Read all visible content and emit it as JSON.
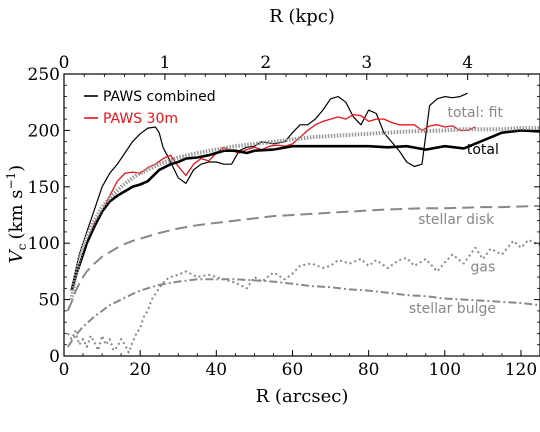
{
  "chart_data": {
    "type": "line",
    "xlabel": "R (arcsec)",
    "x2label": "R (kpc)",
    "ylabel_main": "V",
    "ylabel_sub": "c",
    "ylabel_units": "(km s",
    "ylabel_exp": "−1",
    "ylabel_close": ")",
    "xlim": [
      0,
      125
    ],
    "ylim": [
      0,
      250
    ],
    "x_ticks": [
      0,
      20,
      40,
      60,
      80,
      100,
      120
    ],
    "y_ticks": [
      0,
      50,
      100,
      150,
      200,
      250
    ],
    "x2_ticks": [
      0,
      1,
      2,
      3,
      4
    ],
    "x2_arcsec_per_kpc": 26.5,
    "legend": {
      "placement": "top-left",
      "entries": [
        {
          "label": "PAWS combined",
          "color": "#000000"
        },
        {
          "label": "PAWS 30m",
          "color": "#e8151b"
        }
      ]
    },
    "annotations": [
      {
        "text": "total: fit",
        "x": 108,
        "y": 212,
        "color": "#888888"
      },
      {
        "text": "total",
        "x": 110,
        "y": 179,
        "color": "#000000"
      },
      {
        "text": "stellar disk",
        "x": 103,
        "y": 117,
        "color": "#888888"
      },
      {
        "text": "gas",
        "x": 110,
        "y": 75,
        "color": "#888888"
      },
      {
        "text": "stellar bulge",
        "x": 102,
        "y": 38,
        "color": "#888888"
      }
    ],
    "series": [
      {
        "name": "PAWS combined",
        "color": "#000000",
        "width": 1.2,
        "dash": "",
        "x": [
          2,
          3,
          4,
          5,
          6,
          8,
          10,
          12,
          14,
          16,
          18,
          20,
          22,
          24,
          25,
          26,
          28,
          30,
          32,
          34,
          36,
          38,
          40,
          42,
          44,
          46,
          48,
          50,
          52,
          55,
          58,
          60,
          62,
          64,
          66,
          68,
          70,
          72,
          74,
          76,
          78,
          80,
          82,
          84,
          86,
          88,
          90,
          92,
          94,
          96,
          98,
          100,
          102,
          104,
          106
        ],
        "y": [
          60,
          75,
          90,
          100,
          110,
          130,
          150,
          162,
          170,
          180,
          190,
          197,
          202,
          203,
          198,
          185,
          172,
          158,
          153,
          165,
          170,
          172,
          172,
          170,
          170,
          182,
          185,
          186,
          190,
          188,
          190,
          198,
          205,
          205,
          210,
          218,
          228,
          230,
          225,
          212,
          205,
          218,
          215,
          198,
          190,
          182,
          172,
          168,
          170,
          222,
          228,
          230,
          229,
          230,
          233
        ]
      },
      {
        "name": "PAWS 30m",
        "color": "#e8151b",
        "width": 1.3,
        "dash": "",
        "x": [
          2,
          4,
          6,
          8,
          10,
          12,
          14,
          16,
          18,
          20,
          22,
          24,
          26,
          28,
          30,
          32,
          34,
          36,
          38,
          40,
          42,
          44,
          46,
          48,
          50,
          52,
          54,
          56,
          58,
          60,
          62,
          64,
          66,
          68,
          70,
          72,
          74,
          76,
          78,
          80,
          82,
          84,
          86,
          88,
          90,
          92,
          94,
          96,
          98,
          100,
          102,
          104,
          106,
          108
        ],
        "y": [
          58,
          80,
          100,
          118,
          128,
          142,
          155,
          162,
          163,
          162,
          167,
          170,
          175,
          178,
          168,
          160,
          170,
          175,
          173,
          180,
          185,
          182,
          180,
          183,
          185,
          183,
          186,
          187,
          186,
          188,
          194,
          200,
          205,
          208,
          210,
          212,
          210,
          214,
          213,
          208,
          210,
          210,
          207,
          205,
          205,
          205,
          200,
          204,
          205,
          203,
          204,
          200,
          200,
          203
        ]
      },
      {
        "name": "total",
        "color": "#000000",
        "width": 2.6,
        "dash": "",
        "x": [
          2,
          3,
          4,
          5,
          6,
          8,
          10,
          12,
          14,
          16,
          18,
          20,
          22,
          25,
          28,
          30,
          32,
          35,
          38,
          40,
          42,
          45,
          48,
          50,
          55,
          60,
          62,
          65,
          70,
          75,
          80,
          85,
          90,
          95,
          100,
          105,
          110,
          115,
          120,
          125
        ],
        "y": [
          58,
          70,
          80,
          90,
          100,
          115,
          128,
          137,
          142,
          146,
          150,
          152,
          155,
          165,
          170,
          172,
          175,
          176,
          178,
          180,
          182,
          182,
          180,
          182,
          183,
          186,
          186,
          186,
          186,
          186,
          186,
          185,
          186,
          183,
          186,
          184,
          191,
          198,
          200,
          199
        ]
      },
      {
        "name": "total: fit",
        "color": "#999999",
        "width": 4,
        "dash": "1.5 1.5",
        "x": [
          2,
          3,
          4,
          5,
          6,
          8,
          10,
          12,
          15,
          18,
          20,
          25,
          30,
          35,
          40,
          45,
          50,
          55,
          60,
          65,
          70,
          75,
          80,
          85,
          90,
          95,
          100,
          105,
          110,
          115,
          120,
          125
        ],
        "y": [
          50,
          70,
          85,
          97,
          106,
          120,
          132,
          140,
          150,
          158,
          162,
          170,
          176,
          180,
          183,
          186,
          188,
          190,
          192,
          194,
          195,
          196,
          197,
          198,
          199,
          199.5,
          200,
          201,
          201,
          201,
          202,
          202
        ]
      },
      {
        "name": "stellar disk",
        "color": "#888888",
        "width": 2,
        "dash": "12 6",
        "x": [
          1,
          2,
          3,
          4,
          5,
          6,
          8,
          10,
          12,
          15,
          18,
          20,
          25,
          30,
          35,
          40,
          45,
          50,
          55,
          60,
          65,
          70,
          75,
          80,
          85,
          90,
          95,
          100,
          105,
          110,
          115,
          120,
          125
        ],
        "y": [
          40,
          48,
          57,
          64,
          70,
          75,
          82,
          88,
          92,
          98,
          102,
          104,
          109,
          113,
          116,
          118,
          120,
          122,
          124,
          125,
          126,
          127,
          128,
          129,
          130,
          130.5,
          131,
          131,
          131.5,
          132,
          132,
          132.5,
          133
        ]
      },
      {
        "name": "stellar bulge",
        "color": "#888888",
        "width": 2,
        "dash": "8 3 2 3",
        "x": [
          1,
          3,
          5,
          8,
          10,
          12,
          15,
          18,
          20,
          25,
          30,
          35,
          40,
          45,
          50,
          55,
          60,
          65,
          70,
          75,
          80,
          85,
          90,
          95,
          100,
          105,
          110,
          115,
          120,
          125
        ],
        "y": [
          8,
          18,
          26,
          35,
          40,
          45,
          50,
          55,
          58,
          63,
          66,
          68,
          68,
          68,
          67,
          66,
          64,
          62,
          61,
          59,
          58,
          56,
          54,
          53,
          51,
          50,
          49,
          48,
          47,
          45
        ]
      },
      {
        "name": "gas",
        "color": "#888888",
        "width": 2,
        "dash": "2 3",
        "x": [
          1,
          2,
          3,
          4,
          5,
          6,
          7,
          8,
          9,
          10,
          11,
          12,
          13,
          14,
          15,
          16,
          17,
          18,
          19,
          20,
          21,
          22,
          23,
          24,
          25,
          26,
          27,
          28,
          30,
          32,
          35,
          38,
          40,
          42,
          45,
          48,
          50,
          52,
          55,
          58,
          60,
          62,
          65,
          68,
          70,
          72,
          75,
          78,
          80,
          82,
          85,
          88,
          90,
          92,
          95,
          98,
          100,
          102,
          105,
          108,
          110,
          112,
          115,
          118,
          120,
          122,
          125
        ],
        "y": [
          20,
          15,
          22,
          10,
          15,
          8,
          18,
          12,
          5,
          18,
          10,
          15,
          5,
          8,
          15,
          10,
          3,
          12,
          20,
          25,
          35,
          40,
          50,
          55,
          60,
          65,
          68,
          70,
          72,
          75,
          70,
          72,
          70,
          68,
          65,
          60,
          70,
          66,
          74,
          68,
          73,
          80,
          82,
          78,
          80,
          85,
          82,
          86,
          80,
          85,
          78,
          85,
          87,
          80,
          86,
          75,
          83,
          90,
          82,
          96,
          86,
          95,
          90,
          102,
          96,
          103,
          98
        ]
      }
    ]
  }
}
